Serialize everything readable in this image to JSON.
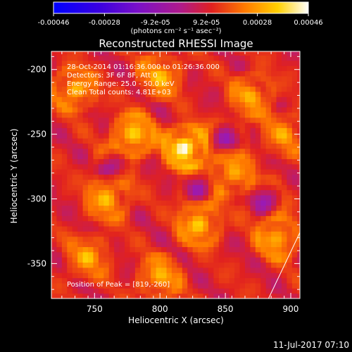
{
  "chart_data": {
    "type": "heatmap",
    "title": "Reconstructed RHESSI Image",
    "xlabel": "Heliocentric X (arcsec)",
    "ylabel": "Heliocentric Y (arcsec)",
    "xlim": [
      717,
      907
    ],
    "ylim": [
      -377,
      -186
    ],
    "x_ticks": [
      750,
      800,
      850,
      900
    ],
    "y_ticks": [
      -200,
      -250,
      -300,
      -350
    ],
    "grid": false,
    "annotations": [
      "28-Oct-2014 01:16:36.000 to 01:26:36.000",
      "Detectors: 3F 6F 8F, Att 0",
      "Energy Range: 25.0 - 50.0 keV",
      "Clean    Total counts: 4.81E+03"
    ],
    "peak_label": "Position of Peak = [819,-260]",
    "peak": [
      819,
      -260
    ],
    "limb_line": {
      "x": [
        883,
        907
      ],
      "y": [
        -377,
        -326
      ]
    },
    "colorbar": {
      "ticks": [
        "-0.00046",
        "-0.00028",
        "-9.2e-05",
        "9.2e-05",
        "0.00028",
        "0.00046"
      ],
      "range": [
        -0.00046,
        0.00046
      ],
      "unit_label": "(photons cm⁻² s⁻¹ asec⁻²)",
      "colors": [
        "#0000ff",
        "#5a00c8",
        "#9a1ab4",
        "#e02020",
        "#ff7a00",
        "#ffd000",
        "#ffffff"
      ]
    },
    "hotspots": [
      {
        "x": 819,
        "y": -260,
        "value": 0.00046
      },
      {
        "x": 780,
        "y": -250,
        "value": 0.00035
      },
      {
        "x": 735,
        "y": -215,
        "value": 0.0003
      },
      {
        "x": 800,
        "y": -205,
        "value": 0.00028
      },
      {
        "x": 760,
        "y": -300,
        "value": 0.00028
      },
      {
        "x": 830,
        "y": -320,
        "value": 0.00032
      },
      {
        "x": 870,
        "y": -220,
        "value": 0.00026
      },
      {
        "x": 855,
        "y": -280,
        "value": 0.00025
      },
      {
        "x": 890,
        "y": -330,
        "value": 0.0003
      },
      {
        "x": 745,
        "y": -345,
        "value": 0.00025
      },
      {
        "x": 800,
        "y": -360,
        "value": 0.00027
      },
      {
        "x": 895,
        "y": -250,
        "value": 0.00022
      }
    ],
    "coldspots": [
      {
        "x": 850,
        "y": -255,
        "value": -0.0002
      },
      {
        "x": 830,
        "y": -290,
        "value": -0.00018
      },
      {
        "x": 765,
        "y": -275,
        "value": -0.00015
      },
      {
        "x": 880,
        "y": -300,
        "value": -0.00016
      }
    ]
  },
  "footer": {
    "timestamp": "11-Jul-2017 07:10"
  }
}
